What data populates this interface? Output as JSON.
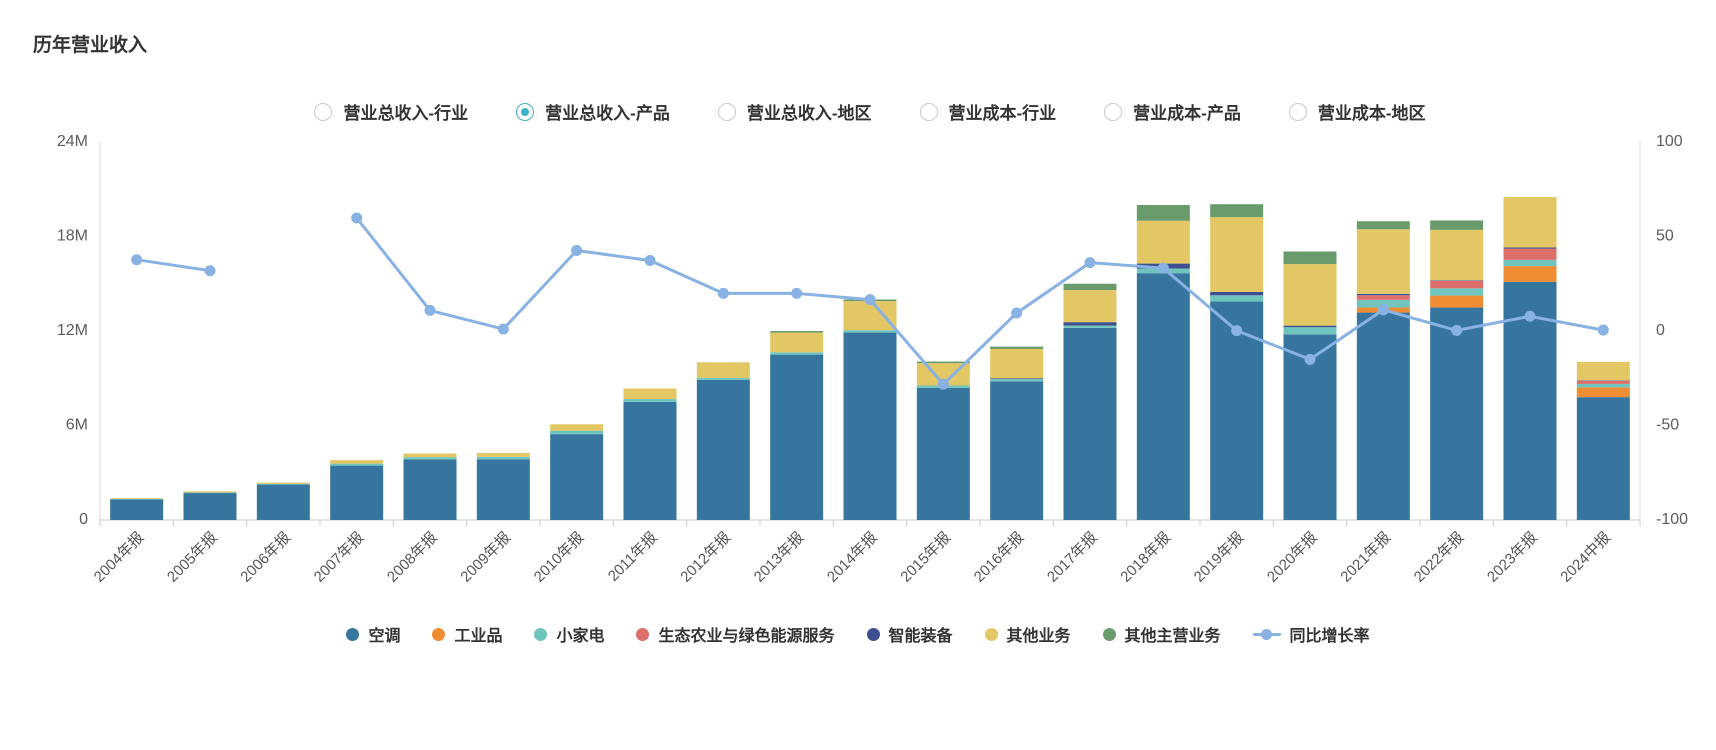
{
  "page": {
    "title": "历年营业收入"
  },
  "tabs": {
    "options": [
      {
        "label": "营业总收入-行业",
        "selected": false
      },
      {
        "label": "营业总收入-产品",
        "selected": true
      },
      {
        "label": "营业总收入-地区",
        "selected": false
      },
      {
        "label": "营业成本-行业",
        "selected": false
      },
      {
        "label": "营业成本-产品",
        "selected": false
      },
      {
        "label": "营业成本-地区",
        "selected": false
      }
    ],
    "accent_color": "#3CB2C4"
  },
  "chart_data": {
    "type": "bar",
    "subtype": "stacked-bar-with-line",
    "title": "历年营业收入",
    "xlabel": "",
    "ylabel": "",
    "unit": "M",
    "grid": false,
    "legend_position": "bottom",
    "categories": [
      "2004年报",
      "2005年报",
      "2006年报",
      "2007年报",
      "2008年报",
      "2009年报",
      "2010年报",
      "2011年报",
      "2012年报",
      "2013年报",
      "2014年报",
      "2015年报",
      "2016年报",
      "2017年报",
      "2018年报",
      "2019年报",
      "2020年报",
      "2021年报",
      "2022年报",
      "2023年报",
      "2024中报"
    ],
    "series": [
      {
        "name": "空调",
        "color": "#36759E",
        "values": [
          1.31,
          1.71,
          2.25,
          3.45,
          3.85,
          3.85,
          5.45,
          7.5,
          8.9,
          10.5,
          11.9,
          8.39,
          8.8,
          12.2,
          15.67,
          13.87,
          11.79,
          13.17,
          13.49,
          15.12,
          7.8
        ]
      },
      {
        "name": "工业品",
        "color": "#F08C33",
        "values": [
          0,
          0,
          0,
          0,
          0,
          0,
          0,
          0,
          0,
          0,
          0,
          0,
          0,
          0,
          0,
          0,
          0,
          0.32,
          0.76,
          1.0,
          0.62
        ]
      },
      {
        "name": "小家电",
        "color": "#6FC4BE",
        "values": [
          0.02,
          0.04,
          0.05,
          0.13,
          0.14,
          0.16,
          0.22,
          0.18,
          0.12,
          0.15,
          0.15,
          0.15,
          0.15,
          0.15,
          0.3,
          0.4,
          0.45,
          0.49,
          0.46,
          0.4,
          0.22
        ]
      },
      {
        "name": "生态农业与绿色能源服务",
        "color": "#DE6E6A",
        "values": [
          0,
          0,
          0,
          0,
          0,
          0,
          0,
          0,
          0,
          0,
          0,
          0,
          0,
          0,
          0,
          0,
          0,
          0.29,
          0.47,
          0.71,
          0.2
        ]
      },
      {
        "name": "智能装备",
        "color": "#3D4F8F",
        "values": [
          0,
          0,
          0,
          0,
          0,
          0,
          0,
          0,
          0,
          0,
          0,
          0,
          0.05,
          0.21,
          0.31,
          0.21,
          0.1,
          0.09,
          0.04,
          0.07,
          0.03
        ]
      },
      {
        "name": "其他业务",
        "color": "#E3C765",
        "values": [
          0.05,
          0.07,
          0.08,
          0.22,
          0.23,
          0.25,
          0.41,
          0.67,
          0.99,
          1.25,
          1.85,
          1.42,
          1.86,
          2.04,
          2.72,
          4.75,
          3.91,
          4.1,
          3.2,
          3.21,
          1.17
        ]
      },
      {
        "name": "其他主营业务",
        "color": "#699B6C",
        "values": [
          0,
          0,
          0,
          0,
          0,
          0,
          0,
          0,
          0,
          0.1,
          0.1,
          0.1,
          0.15,
          0.4,
          1.0,
          0.82,
          0.8,
          0.51,
          0.6,
          0,
          0
        ]
      }
    ],
    "line_series": {
      "name": "同比增长率",
      "color": "#88B2E4",
      "values": [
        37.7,
        31.9,
        null,
        59.8,
        10.9,
        1.0,
        42.6,
        37.3,
        19.9,
        19.9,
        16.6,
        -28.2,
        9.5,
        36.2,
        33.3,
        0.2,
        -15.0,
        11.2,
        0.3,
        7.8,
        0.5
      ]
    },
    "left_axis": {
      "min": 0,
      "max": 24,
      "ticks": [
        "0",
        "6M",
        "12M",
        "18M",
        "24M"
      ]
    },
    "right_axis": {
      "min": -100,
      "max": 100,
      "ticks": [
        "-100",
        "-50",
        "0",
        "50",
        "100"
      ]
    },
    "axis_text_color": "#5c5c5c",
    "axis_line_color": "#d8d8d8"
  }
}
